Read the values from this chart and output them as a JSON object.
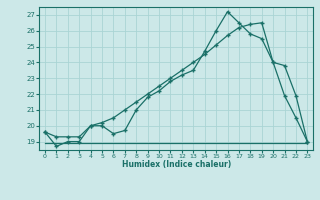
{
  "xlabel": "Humidex (Indice chaleur)",
  "bg_color": "#cce8e8",
  "grid_color": "#b0d8d8",
  "line_color": "#1a7068",
  "xlim": [
    -0.5,
    23.5
  ],
  "ylim": [
    18.5,
    27.5
  ],
  "yticks": [
    19,
    20,
    21,
    22,
    23,
    24,
    25,
    26,
    27
  ],
  "xticks": [
    0,
    1,
    2,
    3,
    4,
    5,
    6,
    7,
    8,
    9,
    10,
    11,
    12,
    13,
    14,
    15,
    16,
    17,
    18,
    19,
    20,
    21,
    22,
    23
  ],
  "line1_x": [
    0,
    1,
    2,
    3,
    4,
    5,
    6,
    7,
    8,
    9,
    10,
    11,
    12,
    13,
    14,
    15,
    16,
    17,
    18,
    19,
    20,
    21,
    22,
    23
  ],
  "line1_y": [
    19.6,
    18.7,
    19.0,
    19.0,
    20.0,
    20.0,
    19.5,
    19.7,
    21.0,
    21.8,
    22.2,
    22.8,
    23.2,
    23.5,
    24.7,
    26.0,
    27.2,
    26.5,
    25.8,
    25.5,
    24.0,
    21.9,
    20.5,
    19.0
  ],
  "line2_x": [
    0,
    23
  ],
  "line2_y": [
    18.9,
    18.9
  ],
  "line3_x": [
    0,
    1,
    2,
    3,
    4,
    5,
    6,
    7,
    8,
    9,
    10,
    11,
    12,
    13,
    14,
    15,
    16,
    17,
    18,
    19,
    20,
    21,
    22,
    23
  ],
  "line3_y": [
    19.6,
    19.3,
    19.3,
    19.3,
    20.0,
    20.2,
    20.5,
    21.0,
    21.5,
    22.0,
    22.5,
    23.0,
    23.5,
    24.0,
    24.5,
    25.1,
    25.7,
    26.2,
    26.4,
    26.5,
    24.0,
    23.8,
    21.9,
    19.0
  ]
}
